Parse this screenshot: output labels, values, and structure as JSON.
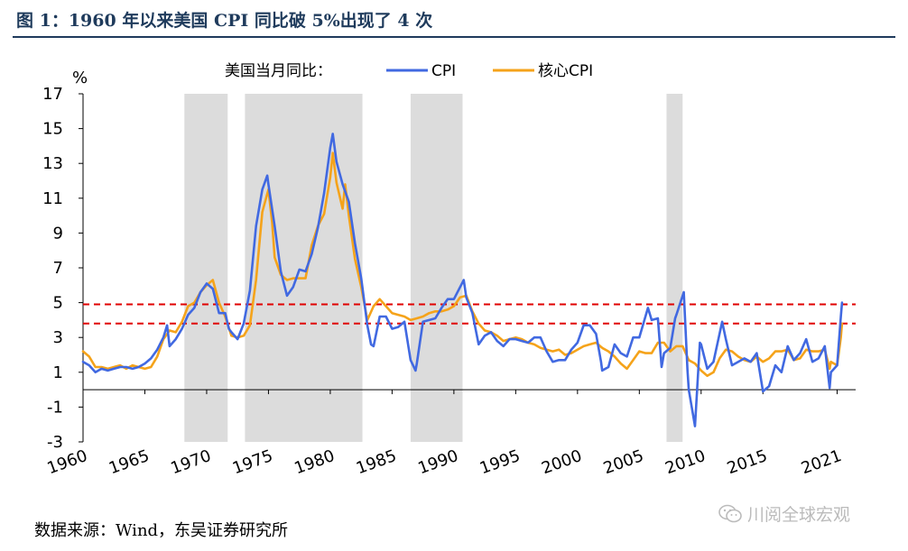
{
  "header": {
    "title": "图 1：1960 年以来美国 CPI 同比破 5%出现了 4 次"
  },
  "footer": {
    "source": "数据来源：Wind，东吴证券研究所",
    "watermark": "川阅全球宏观"
  },
  "colors": {
    "cpi": "#4169e1",
    "core": "#f5a31a",
    "threshold": "#e00000",
    "recession": "#dcdcdc",
    "axis": "#000000"
  },
  "chart_data": {
    "type": "line",
    "title": "",
    "ylabel": "%",
    "ylim": [
      -3,
      17
    ],
    "yticks": [
      "17",
      "15",
      "13",
      "11",
      "9",
      "7",
      "5",
      "3",
      "1",
      "-1",
      "-3"
    ],
    "ytick_values": [
      17,
      15,
      13,
      11,
      9,
      7,
      5,
      3,
      1,
      -1,
      -3
    ],
    "xlim": [
      1960,
      2022.5
    ],
    "xticks": [
      "1960",
      "1965",
      "1970",
      "1975",
      "1980",
      "1985",
      "1990",
      "1995",
      "2000",
      "2005",
      "2010",
      "2015",
      "2021"
    ],
    "xtick_values": [
      1960,
      1965,
      1970,
      1975,
      1980,
      1985,
      1990,
      1995,
      2000,
      2005,
      2010,
      2015,
      2021
    ],
    "legend_label": "美国当月同比：",
    "thresholds": [
      4.9,
      3.8
    ],
    "recessions": [
      [
        1968.2,
        1971.7
      ],
      [
        1973.1,
        1982.6
      ],
      [
        1986.5,
        1990.7
      ],
      [
        2007.2,
        2008.5
      ]
    ],
    "series": [
      {
        "name": "CPI",
        "points": [
          [
            1960,
            1.6
          ],
          [
            1960.5,
            1.4
          ],
          [
            1961,
            1.0
          ],
          [
            1961.5,
            1.2
          ],
          [
            1962,
            1.1
          ],
          [
            1962.5,
            1.2
          ],
          [
            1963,
            1.3
          ],
          [
            1963.5,
            1.3
          ],
          [
            1964,
            1.2
          ],
          [
            1964.5,
            1.3
          ],
          [
            1965,
            1.5
          ],
          [
            1965.5,
            1.8
          ],
          [
            1966,
            2.3
          ],
          [
            1966.5,
            3.0
          ],
          [
            1966.8,
            3.7
          ],
          [
            1967,
            2.5
          ],
          [
            1967.5,
            2.9
          ],
          [
            1968,
            3.5
          ],
          [
            1968.5,
            4.3
          ],
          [
            1969,
            4.7
          ],
          [
            1969.5,
            5.6
          ],
          [
            1970,
            6.1
          ],
          [
            1970.5,
            5.8
          ],
          [
            1971,
            4.4
          ],
          [
            1971.5,
            4.4
          ],
          [
            1971.8,
            3.5
          ],
          [
            1972,
            3.3
          ],
          [
            1972.5,
            2.9
          ],
          [
            1973,
            3.8
          ],
          [
            1973.5,
            5.7
          ],
          [
            1974,
            9.4
          ],
          [
            1974.5,
            11.5
          ],
          [
            1974.9,
            12.3
          ],
          [
            1975,
            11.8
          ],
          [
            1975.5,
            9.4
          ],
          [
            1976,
            6.8
          ],
          [
            1976.5,
            5.4
          ],
          [
            1977,
            5.9
          ],
          [
            1977.5,
            6.9
          ],
          [
            1978,
            6.8
          ],
          [
            1978.5,
            7.8
          ],
          [
            1979,
            9.3
          ],
          [
            1979.5,
            11.3
          ],
          [
            1980,
            13.9
          ],
          [
            1980.2,
            14.7
          ],
          [
            1980.5,
            13.1
          ],
          [
            1981,
            11.8
          ],
          [
            1981.5,
            10.8
          ],
          [
            1982,
            8.4
          ],
          [
            1982.5,
            6.4
          ],
          [
            1983,
            3.7
          ],
          [
            1983.3,
            2.6
          ],
          [
            1983.5,
            2.5
          ],
          [
            1984,
            4.2
          ],
          [
            1984.5,
            4.2
          ],
          [
            1985,
            3.5
          ],
          [
            1985.5,
            3.6
          ],
          [
            1986,
            3.9
          ],
          [
            1986.5,
            1.7
          ],
          [
            1986.9,
            1.1
          ],
          [
            1987,
            1.5
          ],
          [
            1987.5,
            3.9
          ],
          [
            1988,
            4.0
          ],
          [
            1988.5,
            4.1
          ],
          [
            1989,
            4.7
          ],
          [
            1989.5,
            5.2
          ],
          [
            1990,
            5.2
          ],
          [
            1990.8,
            6.3
          ],
          [
            1991,
            5.3
          ],
          [
            1991.5,
            4.4
          ],
          [
            1992,
            2.6
          ],
          [
            1992.5,
            3.1
          ],
          [
            1993,
            3.3
          ],
          [
            1993.5,
            2.8
          ],
          [
            1994,
            2.5
          ],
          [
            1994.5,
            2.9
          ],
          [
            1995,
            2.9
          ],
          [
            1995.5,
            2.8
          ],
          [
            1996,
            2.7
          ],
          [
            1996.5,
            3.0
          ],
          [
            1997,
            3.0
          ],
          [
            1997.5,
            2.2
          ],
          [
            1998,
            1.6
          ],
          [
            1998.5,
            1.7
          ],
          [
            1999,
            1.7
          ],
          [
            1999.5,
            2.3
          ],
          [
            2000,
            2.7
          ],
          [
            2000.5,
            3.7
          ],
          [
            2001,
            3.7
          ],
          [
            2001.5,
            3.2
          ],
          [
            2001.9,
            1.6
          ],
          [
            2002,
            1.1
          ],
          [
            2002.5,
            1.3
          ],
          [
            2003,
            2.6
          ],
          [
            2003.5,
            2.1
          ],
          [
            2004,
            1.9
          ],
          [
            2004.5,
            3.0
          ],
          [
            2005,
            3.0
          ],
          [
            2005.7,
            4.7
          ],
          [
            2006,
            4.0
          ],
          [
            2006.5,
            4.1
          ],
          [
            2006.8,
            1.3
          ],
          [
            2007,
            2.1
          ],
          [
            2007.5,
            2.4
          ],
          [
            2007.9,
            4.1
          ],
          [
            2008,
            4.3
          ],
          [
            2008.6,
            5.6
          ],
          [
            2008.9,
            1.1
          ],
          [
            2009,
            0.0
          ],
          [
            2009.5,
            -2.1
          ],
          [
            2009.9,
            2.7
          ],
          [
            2010,
            2.6
          ],
          [
            2010.5,
            1.2
          ],
          [
            2011,
            1.6
          ],
          [
            2011.7,
            3.9
          ],
          [
            2012,
            2.9
          ],
          [
            2012.5,
            1.4
          ],
          [
            2013,
            1.6
          ],
          [
            2013.5,
            1.8
          ],
          [
            2014,
            1.6
          ],
          [
            2014.5,
            2.1
          ],
          [
            2015,
            -0.1
          ],
          [
            2015.5,
            0.2
          ],
          [
            2016,
            1.4
          ],
          [
            2016.5,
            1.0
          ],
          [
            2017,
            2.5
          ],
          [
            2017.5,
            1.7
          ],
          [
            2018,
            2.1
          ],
          [
            2018.5,
            2.9
          ],
          [
            2019,
            1.6
          ],
          [
            2019.5,
            1.8
          ],
          [
            2020,
            2.5
          ],
          [
            2020.4,
            0.1
          ],
          [
            2020.5,
            1.0
          ],
          [
            2021,
            1.4
          ],
          [
            2021.3,
            4.2
          ],
          [
            2021.4,
            5.0
          ]
        ]
      },
      {
        "name": "核心CPI",
        "points": [
          [
            1960,
            2.2
          ],
          [
            1960.5,
            1.9
          ],
          [
            1961,
            1.3
          ],
          [
            1961.5,
            1.3
          ],
          [
            1962,
            1.2
          ],
          [
            1962.5,
            1.3
          ],
          [
            1963,
            1.4
          ],
          [
            1963.5,
            1.2
          ],
          [
            1964,
            1.4
          ],
          [
            1964.5,
            1.3
          ],
          [
            1965,
            1.2
          ],
          [
            1965.5,
            1.3
          ],
          [
            1966,
            1.9
          ],
          [
            1966.5,
            2.9
          ],
          [
            1967,
            3.4
          ],
          [
            1967.5,
            3.3
          ],
          [
            1968,
            3.9
          ],
          [
            1968.5,
            4.8
          ],
          [
            1969,
            5.0
          ],
          [
            1969.5,
            5.6
          ],
          [
            1970,
            6.0
          ],
          [
            1970.5,
            6.3
          ],
          [
            1971,
            5.0
          ],
          [
            1971.5,
            4.2
          ],
          [
            1972,
            3.1
          ],
          [
            1972.5,
            3.0
          ],
          [
            1973,
            3.1
          ],
          [
            1973.5,
            3.7
          ],
          [
            1974,
            6.3
          ],
          [
            1974.5,
            10.2
          ],
          [
            1975,
            11.5
          ],
          [
            1975.3,
            9.6
          ],
          [
            1975.5,
            7.6
          ],
          [
            1976,
            6.6
          ],
          [
            1976.5,
            6.3
          ],
          [
            1977,
            6.4
          ],
          [
            1977.5,
            6.4
          ],
          [
            1978,
            6.4
          ],
          [
            1978.5,
            8.3
          ],
          [
            1979,
            9.4
          ],
          [
            1979.5,
            10.1
          ],
          [
            1980,
            12.2
          ],
          [
            1980.2,
            13.6
          ],
          [
            1980.5,
            11.9
          ],
          [
            1981,
            10.4
          ],
          [
            1981.2,
            11.8
          ],
          [
            1981.5,
            10.0
          ],
          [
            1982,
            7.5
          ],
          [
            1982.5,
            5.9
          ],
          [
            1983,
            4.0
          ],
          [
            1983.5,
            4.8
          ],
          [
            1984,
            5.2
          ],
          [
            1984.5,
            4.8
          ],
          [
            1985,
            4.4
          ],
          [
            1985.5,
            4.3
          ],
          [
            1986,
            4.2
          ],
          [
            1986.5,
            4.0
          ],
          [
            1987,
            4.1
          ],
          [
            1987.5,
            4.2
          ],
          [
            1988,
            4.4
          ],
          [
            1988.5,
            4.5
          ],
          [
            1989,
            4.5
          ],
          [
            1989.5,
            4.6
          ],
          [
            1990,
            4.8
          ],
          [
            1990.5,
            5.3
          ],
          [
            1991,
            5.4
          ],
          [
            1991.5,
            4.5
          ],
          [
            1992,
            3.8
          ],
          [
            1992.5,
            3.4
          ],
          [
            1993,
            3.3
          ],
          [
            1993.5,
            3.1
          ],
          [
            1994,
            2.8
          ],
          [
            1994.5,
            2.9
          ],
          [
            1995,
            3.0
          ],
          [
            1995.5,
            2.9
          ],
          [
            1996,
            2.7
          ],
          [
            1996.5,
            2.6
          ],
          [
            1997,
            2.4
          ],
          [
            1997.5,
            2.3
          ],
          [
            1998,
            2.2
          ],
          [
            1998.5,
            2.3
          ],
          [
            1999,
            2.0
          ],
          [
            1999.5,
            2.1
          ],
          [
            2000,
            2.3
          ],
          [
            2000.5,
            2.5
          ],
          [
            2001,
            2.6
          ],
          [
            2001.5,
            2.7
          ],
          [
            2002,
            2.4
          ],
          [
            2002.5,
            2.2
          ],
          [
            2003,
            1.9
          ],
          [
            2003.5,
            1.5
          ],
          [
            2004,
            1.2
          ],
          [
            2004.5,
            1.7
          ],
          [
            2005,
            2.2
          ],
          [
            2005.5,
            2.1
          ],
          [
            2006,
            2.1
          ],
          [
            2006.5,
            2.7
          ],
          [
            2007,
            2.7
          ],
          [
            2007.5,
            2.2
          ],
          [
            2008,
            2.5
          ],
          [
            2008.5,
            2.5
          ],
          [
            2009,
            1.7
          ],
          [
            2009.5,
            1.5
          ],
          [
            2010,
            1.1
          ],
          [
            2010.5,
            0.8
          ],
          [
            2011,
            1.0
          ],
          [
            2011.5,
            1.8
          ],
          [
            2012,
            2.3
          ],
          [
            2012.5,
            2.2
          ],
          [
            2013,
            1.9
          ],
          [
            2013.5,
            1.7
          ],
          [
            2014,
            1.6
          ],
          [
            2014.5,
            1.9
          ],
          [
            2015,
            1.6
          ],
          [
            2015.5,
            1.8
          ],
          [
            2016,
            2.2
          ],
          [
            2016.5,
            2.2
          ],
          [
            2017,
            2.3
          ],
          [
            2017.5,
            1.7
          ],
          [
            2018,
            1.8
          ],
          [
            2018.5,
            2.3
          ],
          [
            2019,
            2.2
          ],
          [
            2019.5,
            2.2
          ],
          [
            2020,
            2.3
          ],
          [
            2020.4,
            1.2
          ],
          [
            2020.5,
            1.6
          ],
          [
            2021,
            1.4
          ],
          [
            2021.3,
            3.0
          ],
          [
            2021.4,
            3.8
          ]
        ]
      }
    ]
  }
}
